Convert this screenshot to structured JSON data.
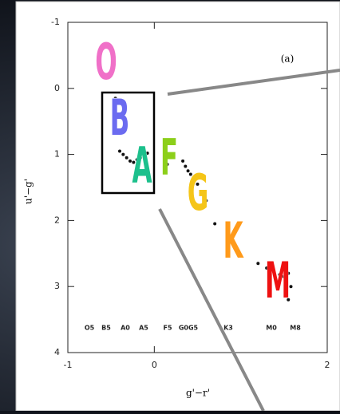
{
  "chart_data": {
    "type": "scatter",
    "panel_label": "(a)",
    "x_label": "g'−r'",
    "y_label": "u'−g'",
    "xlim": [
      -1,
      2
    ],
    "xticks": [
      -1,
      0,
      2
    ],
    "ylim": [
      -1,
      4
    ],
    "yticks": [
      -1,
      0,
      1,
      2,
      3,
      4
    ],
    "y_inverted": true,
    "x": [
      -0.45,
      -0.4,
      -0.36,
      -0.32,
      -0.28,
      -0.24,
      -0.2,
      -0.16,
      -0.12,
      -0.08,
      0.15,
      0.33,
      0.36,
      0.39,
      0.42,
      0.45,
      0.5,
      0.55,
      0.6,
      0.7,
      1.2,
      1.3,
      1.38,
      1.45,
      1.5,
      1.55,
      1.58,
      1.55,
      1.52
    ],
    "values": [
      0.15,
      0.95,
      1.0,
      1.05,
      1.1,
      1.12,
      1.08,
      1.05,
      1.0,
      0.98,
      1.15,
      1.1,
      1.18,
      1.25,
      1.3,
      1.35,
      1.45,
      1.6,
      1.7,
      2.05,
      2.65,
      2.72,
      2.78,
      2.82,
      2.85,
      2.8,
      3.0,
      3.2,
      2.95
    ],
    "color": "#111111",
    "spectral_types": [
      "O5",
      "B5",
      "A0",
      "A5",
      "F5",
      "G0G5",
      "K3",
      "M0",
      "M8"
    ],
    "letters": [
      "O",
      "B",
      "A",
      "F",
      "G",
      "K",
      "M"
    ],
    "letter_colors": [
      "#f070c8",
      "#6b6bf0",
      "#1cc08c",
      "#8ccf1a",
      "#f5c518",
      "#ff9a1a",
      "#ee1111"
    ]
  }
}
